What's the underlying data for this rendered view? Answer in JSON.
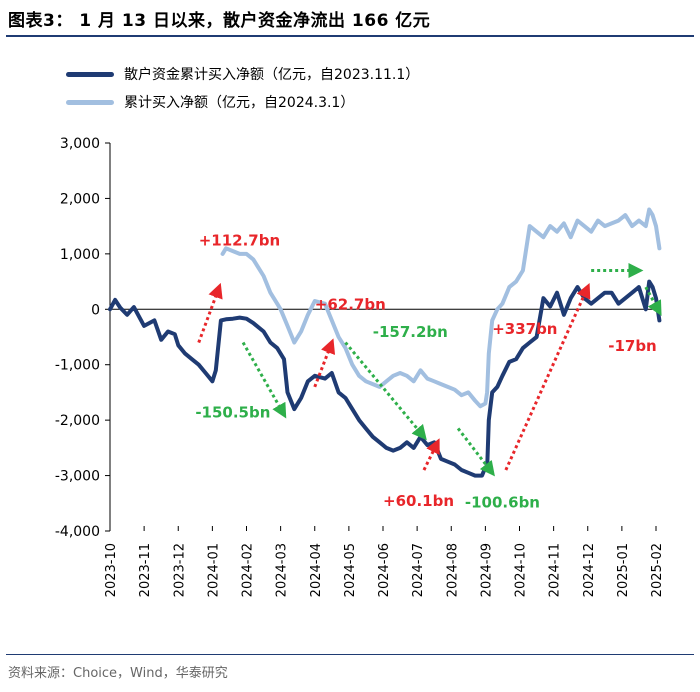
{
  "header": {
    "title": "图表3： 1 月 13 日以来，散户资金净流出 166 亿元"
  },
  "footer": {
    "source": "资料来源：Choice，Wind，华泰研究"
  },
  "chart_data": {
    "type": "line",
    "ylim": [
      -4000,
      3000
    ],
    "yticks": [
      3000,
      2000,
      1000,
      0,
      -1000,
      -2000,
      -3000,
      -4000
    ],
    "ytick_labels": [
      "3,000",
      "2,000",
      "1,000",
      "0",
      "-1,000",
      "-2,000",
      "-3,000",
      "-4,000"
    ],
    "xtick_labels": [
      "2023-10",
      "2023-11",
      "2023-12",
      "2024-01",
      "2024-02",
      "2024-03",
      "2024-04",
      "2024-05",
      "2024-06",
      "2024-07",
      "2024-08",
      "2024-09",
      "2024-10",
      "2024-11",
      "2024-12",
      "2025-01",
      "2025-02"
    ],
    "grid": false,
    "legend": "top-left",
    "series": [
      {
        "name": "散户资金累计买入净额（亿元，自2023.11.1）",
        "color": "#1f3b73",
        "x": [
          0,
          0.15,
          0.3,
          0.5,
          0.7,
          1.0,
          1.3,
          1.5,
          1.7,
          1.9,
          2.0,
          2.2,
          2.4,
          2.6,
          2.8,
          3.0,
          3.1,
          3.25,
          3.4,
          3.6,
          3.8,
          4.0,
          4.2,
          4.5,
          4.7,
          4.9,
          5.1,
          5.2,
          5.4,
          5.6,
          5.8,
          6.0,
          6.3,
          6.5,
          6.7,
          6.9,
          7.1,
          7.3,
          7.5,
          7.7,
          7.9,
          8.1,
          8.3,
          8.5,
          8.7,
          8.9,
          9.1,
          9.3,
          9.5,
          9.7,
          9.9,
          10.1,
          10.3,
          10.5,
          10.7,
          10.9,
          11.0,
          11.05,
          11.1,
          11.2,
          11.35,
          11.5,
          11.7,
          11.9,
          12.1,
          12.3,
          12.5,
          12.7,
          12.9,
          13.1,
          13.3,
          13.5,
          13.7,
          13.9,
          14.1,
          14.3,
          14.5,
          14.7,
          14.9,
          15.1,
          15.3,
          15.5,
          15.7,
          15.8,
          15.9,
          16.0,
          16.1
        ],
        "y": [
          0,
          170,
          30,
          -100,
          40,
          -300,
          -200,
          -550,
          -400,
          -450,
          -650,
          -800,
          -900,
          -1000,
          -1150,
          -1300,
          -1100,
          -200,
          -180,
          -170,
          -150,
          -170,
          -250,
          -400,
          -600,
          -700,
          -900,
          -1500,
          -1800,
          -1600,
          -1300,
          -1200,
          -1250,
          -1150,
          -1500,
          -1600,
          -1800,
          -2000,
          -2150,
          -2300,
          -2400,
          -2500,
          -2550,
          -2500,
          -2400,
          -2500,
          -2300,
          -2450,
          -2400,
          -2700,
          -2750,
          -2800,
          -2900,
          -2950,
          -3000,
          -3000,
          -2850,
          -2900,
          -2000,
          -1500,
          -1400,
          -1200,
          -950,
          -900,
          -700,
          -600,
          -500,
          200,
          50,
          300,
          -100,
          200,
          400,
          200,
          100,
          200,
          300,
          300,
          100,
          200,
          300,
          400,
          0,
          500,
          400,
          200,
          -200
        ]
      },
      {
        "name": "累计买入净额（亿元，自2024.3.1）",
        "color": "#a2bfe0",
        "x": [
          3.3,
          3.4,
          3.6,
          3.8,
          4.0,
          4.2,
          4.5,
          4.7,
          4.9,
          5.0,
          5.2,
          5.4,
          5.6,
          5.8,
          6.0,
          6.3,
          6.5,
          6.7,
          6.9,
          7.1,
          7.3,
          7.5,
          7.7,
          7.9,
          8.1,
          8.3,
          8.5,
          8.7,
          8.9,
          9.1,
          9.3,
          9.5,
          9.7,
          9.9,
          10.1,
          10.3,
          10.5,
          10.7,
          10.85,
          11.0,
          11.05,
          11.1,
          11.2,
          11.35,
          11.5,
          11.7,
          11.9,
          12.1,
          12.3,
          12.5,
          12.7,
          12.9,
          13.1,
          13.3,
          13.5,
          13.7,
          13.9,
          14.1,
          14.3,
          14.5,
          14.7,
          14.9,
          15.1,
          15.3,
          15.5,
          15.7,
          15.8,
          15.9,
          16.0,
          16.1
        ],
        "y": [
          1000,
          1100,
          1050,
          1000,
          1000,
          900,
          600,
          300,
          100,
          0,
          -300,
          -600,
          -400,
          -100,
          150,
          100,
          -200,
          -500,
          -700,
          -1000,
          -1200,
          -1300,
          -1350,
          -1400,
          -1300,
          -1200,
          -1150,
          -1200,
          -1300,
          -1100,
          -1250,
          -1300,
          -1350,
          -1400,
          -1450,
          -1550,
          -1500,
          -1650,
          -1750,
          -1700,
          -1500,
          -800,
          -200,
          0,
          100,
          400,
          500,
          700,
          1500,
          1400,
          1300,
          1500,
          1400,
          1550,
          1300,
          1600,
          1500,
          1400,
          1600,
          1500,
          1550,
          1600,
          1700,
          1500,
          1600,
          1500,
          1800,
          1700,
          1500,
          1100
        ]
      }
    ],
    "annotations": [
      {
        "text": "+112.7bn",
        "color": "#e8262a",
        "arrow_color": "#e8262a",
        "arrow_from": [
          2.6,
          -600
        ],
        "arrow_to": [
          3.2,
          400
        ],
        "label_x": 2.6,
        "label_y": 1150
      },
      {
        "text": "+62.7bn",
        "color": "#e8262a",
        "arrow_color": "#e8262a",
        "arrow_from": [
          6.0,
          -1400
        ],
        "arrow_to": [
          6.5,
          -600
        ],
        "label_x": 6.0,
        "label_y": 0
      },
      {
        "text": "-157.2bn",
        "color": "#2eaf4a",
        "arrow_color": "#2eaf4a",
        "arrow_from": [
          6.9,
          -600
        ],
        "arrow_to": [
          9.2,
          -2300
        ],
        "label_x": 7.7,
        "label_y": -500
      },
      {
        "text": "+337bn",
        "color": "#e8262a",
        "arrow_color": "#e8262a",
        "arrow_from": [
          11.6,
          -2900
        ],
        "arrow_to": [
          14.0,
          400
        ],
        "label_x": 11.2,
        "label_y": -450
      },
      {
        "text": "-150.5bn",
        "color": "#2eaf4a",
        "arrow_color": "#2eaf4a",
        "arrow_from": [
          3.9,
          -600
        ],
        "arrow_to": [
          5.1,
          -1900
        ],
        "label_x": 2.5,
        "label_y": -1950
      },
      {
        "text": "+60.1bn",
        "color": "#e8262a",
        "arrow_color": "#e8262a",
        "arrow_from": [
          9.2,
          -2900
        ],
        "arrow_to": [
          9.6,
          -2400
        ],
        "label_x": 8.0,
        "label_y": -3550
      },
      {
        "text": "-100.6bn",
        "color": "#2eaf4a",
        "arrow_color": "#2eaf4a",
        "arrow_from": [
          10.2,
          -2150
        ],
        "arrow_to": [
          11.2,
          -2950
        ],
        "label_x": 10.4,
        "label_y": -3580
      },
      {
        "text": "-17bn",
        "color": "#e8262a",
        "arrow_color": "#2eaf4a",
        "arrow_from": [
          15.7,
          400
        ],
        "arrow_to": [
          16.1,
          -50
        ],
        "label_x": 14.6,
        "label_y": -750
      },
      {
        "text": "",
        "color": "#2eaf4a",
        "arrow_color": "#2eaf4a",
        "arrow_from": [
          14.1,
          700
        ],
        "arrow_to": [
          15.5,
          700
        ],
        "label_x": 14.8,
        "label_y": 700
      }
    ]
  }
}
